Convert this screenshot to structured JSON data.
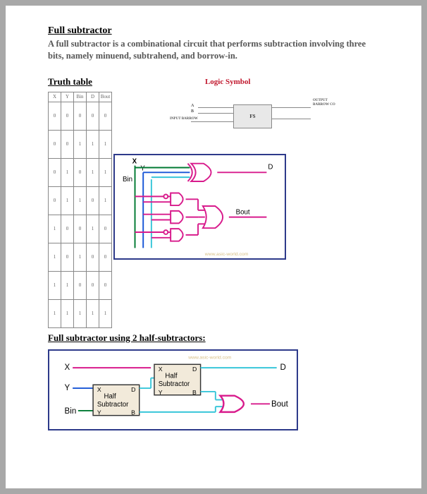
{
  "title": "Full subtractor",
  "description": "A full subtractor is a combinational circuit that performs subtraction involving three bits, namely minuend, subtrahend, and borrow-in.",
  "truthHeading": "Truth table",
  "logicHeading": "Logic Symbol",
  "blockDiagram": {
    "boxLabel": "FS",
    "inputs": {
      "a": "A",
      "b": "B",
      "bin": "INPUT BARROW"
    },
    "outputs": {
      "d": "OUTPUT",
      "bout": "BARROW CO"
    }
  },
  "truth": {
    "columns": [
      "X",
      "Y",
      "Bin",
      "D",
      "Bout"
    ],
    "rows": [
      [
        "0",
        "0",
        "0",
        "0",
        "0"
      ],
      [
        "0",
        "0",
        "1",
        "1",
        "1"
      ],
      [
        "0",
        "1",
        "0",
        "1",
        "1"
      ],
      [
        "0",
        "1",
        "1",
        "0",
        "1"
      ],
      [
        "1",
        "0",
        "0",
        "1",
        "0"
      ],
      [
        "1",
        "0",
        "1",
        "0",
        "0"
      ],
      [
        "1",
        "1",
        "0",
        "0",
        "0"
      ],
      [
        "1",
        "1",
        "1",
        "1",
        "1"
      ]
    ]
  },
  "gatesDiagram": {
    "signals": {
      "x": "X",
      "y": "Y",
      "bin": "Bin",
      "d": "D",
      "bout": "Bout"
    },
    "wireColors": {
      "x": "#007a33",
      "y": "#1856d6",
      "bin": "#38c6d9",
      "gate": "#d81b8c"
    },
    "background": "#ffffff",
    "watermark": "www.asic-world.com"
  },
  "halfSubTitle": "Full subtractor using 2 half-subtractors:",
  "halfDiagram": {
    "signals": {
      "x": "X",
      "y": "Y",
      "bin": "Bin",
      "d": "D",
      "bout": "Bout"
    },
    "boxLabel": "Half Subtractor",
    "ports": {
      "x": "X",
      "y": "Y",
      "d": "D",
      "b": "B"
    },
    "wireColors": {
      "x": "#d81b8c",
      "y": "#1856d6",
      "bin": "#007a33",
      "mid": "#38c6d9",
      "gate": "#d81b8c"
    },
    "boxFill": "#f2eada",
    "watermark": "www.asic-world.com"
  }
}
